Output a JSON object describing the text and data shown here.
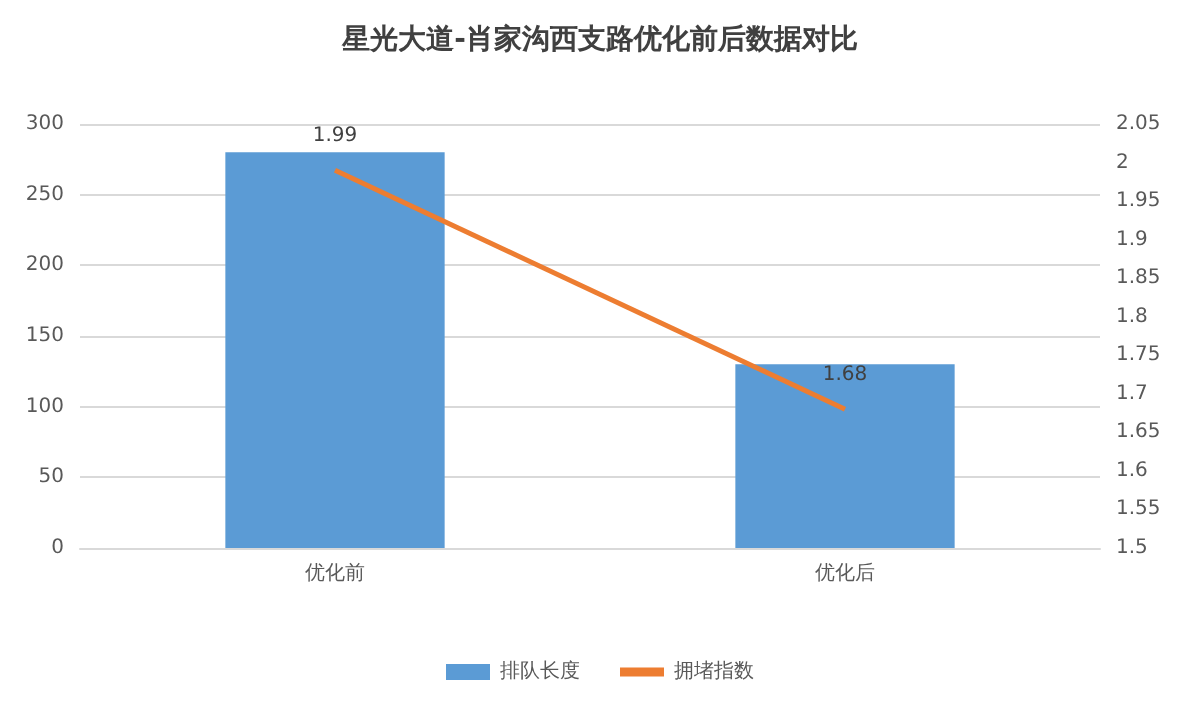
{
  "chart_data": {
    "type": "bar",
    "title": "星光大道-肖家沟西支路优化前后数据对比",
    "categories": [
      "优化前",
      "优化后"
    ],
    "series": [
      {
        "name": "排队长度",
        "color": "#5b9bd5",
        "values": [
          280,
          130
        ]
      },
      {
        "name": "拥堵指数",
        "type": "line",
        "axis": "y2",
        "color": "#ed7d31",
        "values": [
          1.99,
          1.68
        ],
        "value_labels": [
          "1.99",
          "1.68"
        ]
      }
    ],
    "ylim": [
      0,
      300
    ],
    "yticks": [
      0,
      50,
      100,
      150,
      200,
      250,
      300
    ],
    "y2lim": [
      1.5,
      2.05
    ],
    "y2ticks": [
      1.5,
      1.55,
      1.6,
      1.65,
      1.7,
      1.75,
      1.8,
      1.85,
      1.9,
      1.95,
      2,
      2.05
    ],
    "grid": "y",
    "legend": "bottom",
    "marker": "none"
  }
}
